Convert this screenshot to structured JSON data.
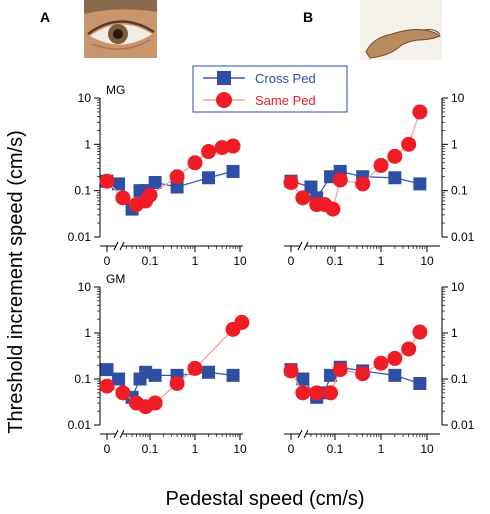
{
  "figure": {
    "panel_a": "A",
    "panel_b": "B",
    "ylabel": "Threshold increment speed (cm/s)",
    "xlabel": "Pedestal speed (cm/s)",
    "legend": {
      "cross": "Cross Ped",
      "same": "Same Ped"
    },
    "x_ticks": [
      "0",
      "0.1",
      "1",
      "10"
    ],
    "y_ticks": [
      "10",
      "1",
      "0.1",
      "0.01"
    ],
    "colors": {
      "cross": "#2e4fa3",
      "same": "#ee1c24",
      "cross_line": "#3a5cb0",
      "same_line": "#f7a09a"
    },
    "icons": {
      "a": "eye-icon",
      "b": "hand-icon"
    }
  },
  "chart_data": [
    {
      "type": "scatter",
      "panel": "A",
      "subject": "MG",
      "xscale": "log",
      "yscale": "log",
      "xlim": [
        0.01,
        12
      ],
      "ylim": [
        0.01,
        10
      ],
      "series": [
        {
          "name": "Cross Ped",
          "marker": "square",
          "x": [
            0,
            0.02,
            0.04,
            0.06,
            0.08,
            0.13,
            0.4,
            2,
            7
          ],
          "y": [
            0.16,
            0.14,
            0.04,
            0.1,
            0.1,
            0.15,
            0.12,
            0.19,
            0.26
          ]
        },
        {
          "name": "Same Ped",
          "marker": "circle",
          "x": [
            0,
            0.025,
            0.05,
            0.08,
            0.1,
            0.4,
            1,
            2,
            4,
            7
          ],
          "y": [
            0.16,
            0.07,
            0.05,
            0.06,
            0.08,
            0.2,
            0.4,
            0.7,
            0.85,
            0.92
          ]
        }
      ]
    },
    {
      "type": "scatter",
      "panel": "B",
      "subject": "MG",
      "xscale": "log",
      "yscale": "log",
      "xlim": [
        0.01,
        12
      ],
      "ylim": [
        0.01,
        10
      ],
      "series": [
        {
          "name": "Cross Ped",
          "marker": "square",
          "x": [
            0,
            0.03,
            0.04,
            0.08,
            0.13,
            0.4,
            2,
            7
          ],
          "y": [
            0.16,
            0.12,
            0.07,
            0.2,
            0.26,
            0.2,
            0.19,
            0.14
          ]
        },
        {
          "name": "Same Ped",
          "marker": "circle",
          "x": [
            0,
            0.02,
            0.04,
            0.06,
            0.09,
            0.13,
            0.4,
            1,
            2,
            4,
            7
          ],
          "y": [
            0.15,
            0.07,
            0.05,
            0.05,
            0.04,
            0.17,
            0.14,
            0.35,
            0.55,
            1.0,
            5.0
          ]
        }
      ]
    },
    {
      "type": "scatter",
      "panel": "A",
      "subject": "GM",
      "xscale": "log",
      "yscale": "log",
      "xlim": [
        0.01,
        12
      ],
      "ylim": [
        0.01,
        10
      ],
      "series": [
        {
          "name": "Cross Ped",
          "marker": "square",
          "x": [
            0,
            0.02,
            0.04,
            0.06,
            0.08,
            0.13,
            0.4,
            2,
            7
          ],
          "y": [
            0.16,
            0.1,
            0.04,
            0.1,
            0.14,
            0.12,
            0.12,
            0.14,
            0.12
          ]
        },
        {
          "name": "Same Ped",
          "marker": "circle",
          "x": [
            0,
            0.025,
            0.05,
            0.08,
            0.13,
            0.4,
            1,
            7,
            11
          ],
          "y": [
            0.07,
            0.05,
            0.03,
            0.025,
            0.03,
            0.08,
            0.17,
            1.2,
            1.7
          ]
        }
      ]
    },
    {
      "type": "scatter",
      "panel": "B",
      "subject": "GM",
      "xscale": "log",
      "yscale": "log",
      "xlim": [
        0.01,
        12
      ],
      "ylim": [
        0.01,
        10
      ],
      "series": [
        {
          "name": "Cross Ped",
          "marker": "square",
          "x": [
            0,
            0.02,
            0.04,
            0.06,
            0.08,
            0.13,
            0.4,
            2,
            7
          ],
          "y": [
            0.16,
            0.1,
            0.04,
            0.05,
            0.12,
            0.18,
            0.15,
            0.12,
            0.08
          ]
        },
        {
          "name": "Same Ped",
          "marker": "circle",
          "x": [
            0,
            0.02,
            0.04,
            0.08,
            0.13,
            0.4,
            1,
            2,
            4,
            7
          ],
          "y": [
            0.15,
            0.05,
            0.05,
            0.05,
            0.16,
            0.13,
            0.22,
            0.28,
            0.45,
            1.05
          ]
        }
      ]
    }
  ]
}
